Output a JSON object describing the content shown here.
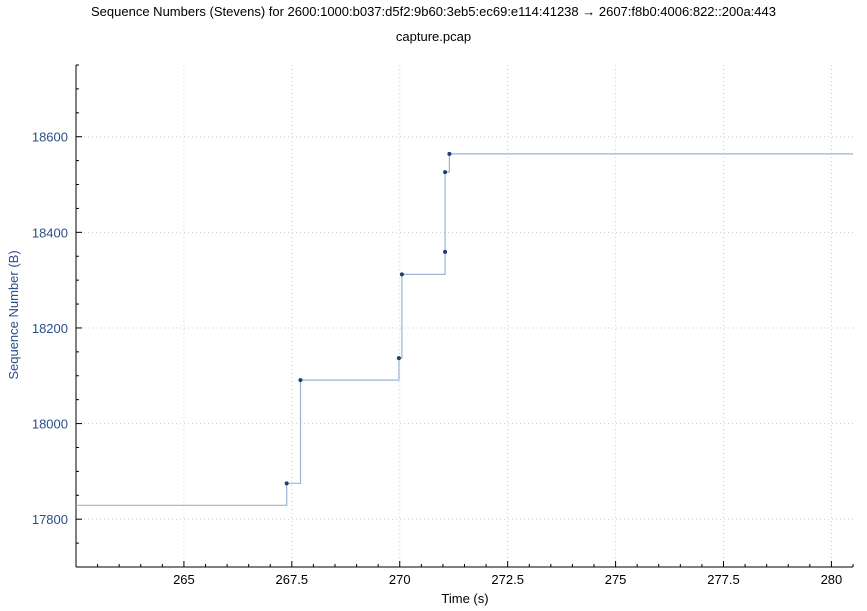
{
  "title": "Sequence Numbers (Stevens) for 2600:1000:b037:d5f2:9b60:3eb5:ec69:e114:41238 → 2607:f8b0:4006:822::200a:443",
  "subtitle": "capture.pcap",
  "colors": {
    "line": "#9db4d4",
    "point": "#1f3d73",
    "ylabel": "#2b4f8a",
    "grid": "#cccccc",
    "axis": "#000000"
  },
  "chart_data": {
    "type": "line",
    "title": "Sequence Numbers (Stevens) for 2600:1000:b037:d5f2:9b60:3eb5:ec69:e114:41238 → 2607:f8b0:4006:822::200a:443",
    "subtitle": "capture.pcap",
    "xlabel": "Time (s)",
    "ylabel": "Sequence Number (B)",
    "xlim": [
      262.5,
      280.5
    ],
    "ylim": [
      17700,
      18750
    ],
    "x_ticks": [
      265,
      267.5,
      270,
      272.5,
      275,
      277.5,
      280
    ],
    "x_tick_labels": [
      "265",
      "267.5",
      "270",
      "272.5",
      "275",
      "277.5",
      "280"
    ],
    "y_ticks": [
      17800,
      18000,
      18200,
      18400,
      18600
    ],
    "y_tick_labels": [
      "17800",
      "18000",
      "18200",
      "18400",
      "18600"
    ],
    "grid": true,
    "line_style": "step",
    "series": [
      {
        "points": [
          [
            262.5,
            17829
          ],
          [
            267.38,
            17829
          ],
          [
            267.38,
            17875
          ],
          [
            267.7,
            17875
          ],
          [
            267.7,
            18091
          ],
          [
            269.98,
            18091
          ],
          [
            269.98,
            18137
          ],
          [
            270.05,
            18137
          ],
          [
            270.05,
            18312
          ],
          [
            271.05,
            18312
          ],
          [
            271.05,
            18526
          ],
          [
            271.15,
            18526
          ],
          [
            271.15,
            18564
          ],
          [
            280.5,
            18564
          ]
        ],
        "markers": [
          [
            267.38,
            17875
          ],
          [
            267.7,
            18091
          ],
          [
            269.98,
            18137
          ],
          [
            270.05,
            18312
          ],
          [
            271.05,
            18359
          ],
          [
            271.05,
            18526
          ],
          [
            271.15,
            18564
          ]
        ]
      }
    ]
  }
}
